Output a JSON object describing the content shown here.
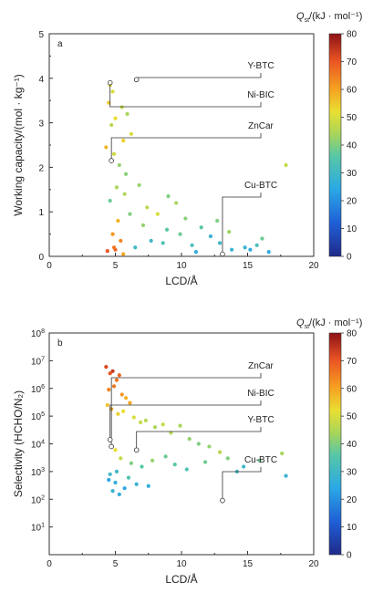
{
  "chart_data": [
    {
      "type": "scatter",
      "panel_label": "a",
      "xlabel": "LCD/Å",
      "ylabel": "Working capacity/(mol · kg⁻¹)",
      "xlim": [
        0,
        20
      ],
      "ylim": [
        0,
        5
      ],
      "yscale": "linear",
      "xticks": [
        "0",
        "5",
        "10",
        "15",
        "20"
      ],
      "yticks": [
        "0",
        "1",
        "2",
        "3",
        "4",
        "5"
      ],
      "colorbar": {
        "label": "Q",
        "label_sub": "st",
        "label_rest": "/(kJ · mol⁻¹)",
        "range": [
          0,
          80
        ],
        "ticks": [
          "0",
          "10",
          "20",
          "30",
          "40",
          "50",
          "60",
          "70",
          "80"
        ]
      },
      "annotations": [
        {
          "label": "Y-BTC",
          "x": 6.6,
          "y": 3.97,
          "color": 55
        },
        {
          "label": "Ni-BIC",
          "x": 4.6,
          "y": 3.9,
          "color": 58
        },
        {
          "label": "ZnCar",
          "x": 4.7,
          "y": 2.15,
          "color": 62
        },
        {
          "label": "Cu-BTC",
          "x": 13.1,
          "y": 0.05,
          "color": 45
        }
      ],
      "series": [
        {
          "x": [
            4.6,
            4.8,
            5.5,
            4.5,
            5.0,
            4.7,
            5.9,
            6.2,
            5.6,
            4.3,
            4.9,
            5.3,
            9.0,
            5.1,
            5.8,
            4.6,
            5.7,
            6.8,
            7.4,
            8.2,
            9.6,
            10.3,
            11.5,
            12.7,
            13.6,
            14.8,
            16.1,
            17.9,
            15.2,
            6.1,
            7.7,
            8.9,
            10.8,
            12.2,
            4.8,
            5.2,
            6.5,
            7.1,
            8.6,
            9.9,
            11.1,
            12.9,
            13.8,
            15.7,
            16.6,
            5.0,
            5.4,
            4.4,
            4.9,
            5.6
          ],
          "y": [
            3.85,
            3.7,
            3.35,
            3.45,
            3.1,
            2.95,
            3.2,
            2.75,
            2.6,
            2.45,
            2.3,
            2.05,
            1.35,
            1.55,
            1.85,
            1.25,
            1.4,
            1.6,
            1.1,
            0.95,
            1.2,
            0.85,
            0.65,
            0.8,
            0.55,
            0.2,
            0.4,
            2.05,
            0.15,
            0.95,
            0.35,
            0.6,
            0.25,
            0.45,
            0.5,
            0.8,
            0.2,
            0.7,
            0.3,
            0.5,
            0.1,
            0.3,
            0.15,
            0.25,
            0.1,
            0.15,
            0.35,
            0.12,
            0.2,
            0.05
          ],
          "color": [
            52,
            50,
            48,
            55,
            52,
            46,
            44,
            50,
            54,
            58,
            49,
            42,
            40,
            44,
            41,
            38,
            45,
            42,
            46,
            50,
            44,
            41,
            36,
            40,
            43,
            28,
            38,
            48,
            25,
            40,
            30,
            36,
            32,
            28,
            62,
            58,
            30,
            42,
            34,
            38,
            26,
            30,
            28,
            32,
            26,
            68,
            64,
            70,
            66,
            60
          ]
        }
      ]
    },
    {
      "type": "scatter",
      "panel_label": "b",
      "xlabel": "LCD/Å",
      "ylabel": "Selectivity (HCHO/N₂)",
      "xlim": [
        0,
        20
      ],
      "ylim": [
        1,
        100000000
      ],
      "yscale": "log",
      "xticks": [
        "0",
        "5",
        "10",
        "15",
        "20"
      ],
      "yticks": [
        {
          "base": "10",
          "exp": "1"
        },
        {
          "base": "10",
          "exp": "2"
        },
        {
          "base": "10",
          "exp": "3"
        },
        {
          "base": "10",
          "exp": "4"
        },
        {
          "base": "10",
          "exp": "5"
        },
        {
          "base": "10",
          "exp": "6"
        },
        {
          "base": "10",
          "exp": "7"
        },
        {
          "base": "10",
          "exp": "8"
        }
      ],
      "colorbar": {
        "label": "Q",
        "label_sub": "st",
        "label_rest": "/(kJ · mol⁻¹)",
        "range": [
          0,
          80
        ],
        "ticks": [
          "0",
          "10",
          "20",
          "30",
          "40",
          "50",
          "60",
          "70",
          "80"
        ]
      },
      "annotations": [
        {
          "label": "ZnCar",
          "x": 4.7,
          "y": 8000,
          "color": 62
        },
        {
          "label": "Ni-BIC",
          "x": 4.6,
          "y": 14000,
          "color": 58
        },
        {
          "label": "Y-BTC",
          "x": 6.6,
          "y": 6000,
          "color": 55
        },
        {
          "label": "Cu-BTC",
          "x": 13.1,
          "y": 90,
          "color": 45
        }
      ],
      "series": [
        {
          "x": [
            4.3,
            4.6,
            4.8,
            5.1,
            5.3,
            4.5,
            4.9,
            5.5,
            5.8,
            6.1,
            4.4,
            4.7,
            5.2,
            5.6,
            6.4,
            6.9,
            7.3,
            8.0,
            8.6,
            9.2,
            9.9,
            10.6,
            11.3,
            12.1,
            12.9,
            13.5,
            14.7,
            15.9,
            17.6,
            17.9,
            5.0,
            5.4,
            6.2,
            7.0,
            7.8,
            8.8,
            9.5,
            10.4,
            11.8,
            14.2,
            4.6,
            5.0,
            5.7,
            6.6,
            7.5,
            4.8,
            5.3,
            6.0,
            4.5,
            5.1
          ],
          "y": [
            6000000,
            3500000,
            4200000,
            2000000,
            3000000,
            900000,
            1200000,
            600000,
            450000,
            300000,
            250000,
            180000,
            120000,
            150000,
            90000,
            60000,
            70000,
            40000,
            50000,
            25000,
            45000,
            15000,
            10000,
            8000,
            5000,
            3000,
            1500,
            2500,
            4500,
            700,
            6000,
            3000,
            2000,
            1500,
            2500,
            3500,
            1800,
            1200,
            2200,
            1000,
            800,
            400,
            250,
            350,
            300,
            200,
            150,
            600,
            500,
            1000
          ],
          "color": [
            72,
            70,
            74,
            66,
            68,
            64,
            66,
            62,
            58,
            60,
            56,
            60,
            54,
            52,
            50,
            48,
            46,
            44,
            48,
            46,
            44,
            42,
            40,
            42,
            46,
            40,
            30,
            38,
            44,
            28,
            52,
            48,
            40,
            36,
            42,
            38,
            36,
            34,
            38,
            30,
            30,
            26,
            24,
            28,
            26,
            28,
            26,
            34,
            24,
            30
          ]
        }
      ]
    }
  ]
}
